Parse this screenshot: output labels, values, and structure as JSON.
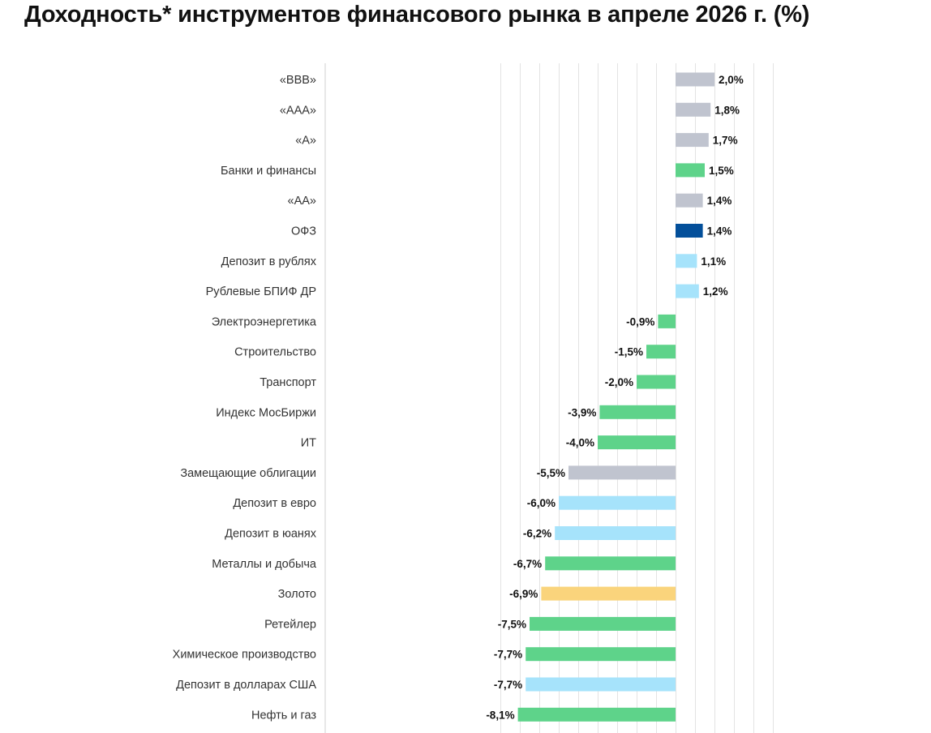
{
  "title": "Доходность* инструментов финансового рынка в апреле 2026 г. (%)",
  "colors": {
    "gray": "#c0c4cf",
    "green": "#5ed38a",
    "navy": "#034f9a",
    "light_blue": "#a6e3fb",
    "gold": "#fad47c"
  },
  "chart_data": {
    "type": "bar",
    "orientation": "horizontal",
    "title": "Доходность* инструментов финансового рынка в апреле 2026 г. (%)",
    "xlim": [
      -9,
      5
    ],
    "grid": true,
    "bars": [
      {
        "category": "«BBB»",
        "value": 2.0,
        "label": "2,0%",
        "color": "gray"
      },
      {
        "category": "«AAA»",
        "value": 1.8,
        "label": "1,8%",
        "color": "gray"
      },
      {
        "category": "«A»",
        "value": 1.7,
        "label": "1,7%",
        "color": "gray"
      },
      {
        "category": "Банки и финансы",
        "value": 1.5,
        "label": "1,5%",
        "color": "green"
      },
      {
        "category": "«AA»",
        "value": 1.4,
        "label": "1,4%",
        "color": "gray"
      },
      {
        "category": "ОФЗ",
        "value": 1.4,
        "label": "1,4%",
        "color": "navy"
      },
      {
        "category": "Депозит в рублях",
        "value": 1.1,
        "label": "1,1%",
        "color": "light_blue"
      },
      {
        "category": "Рублевые БПИФ ДР",
        "value": 1.2,
        "label": "1,2%",
        "color": "light_blue"
      },
      {
        "category": "Электроэнергетика",
        "value": -0.9,
        "label": "-0,9%",
        "color": "green"
      },
      {
        "category": "Строительство",
        "value": -1.5,
        "label": "-1,5%",
        "color": "green"
      },
      {
        "category": "Транспорт",
        "value": -2.0,
        "label": "-2,0%",
        "color": "green"
      },
      {
        "category": "Индекс МосБиржи",
        "value": -3.9,
        "label": "-3,9%",
        "color": "green"
      },
      {
        "category": "ИТ",
        "value": -4.0,
        "label": "-4,0%",
        "color": "green"
      },
      {
        "category": "Замещающие облигации",
        "value": -5.5,
        "label": "-5,5%",
        "color": "gray"
      },
      {
        "category": "Депозит в евро",
        "value": -6.0,
        "label": "-6,0%",
        "color": "light_blue"
      },
      {
        "category": "Депозит в юанях",
        "value": -6.2,
        "label": "-6,2%",
        "color": "light_blue"
      },
      {
        "category": "Металлы и добыча",
        "value": -6.7,
        "label": "-6,7%",
        "color": "green"
      },
      {
        "category": "Золото",
        "value": -6.9,
        "label": "-6,9%",
        "color": "gold"
      },
      {
        "category": "Ретейлер",
        "value": -7.5,
        "label": "-7,5%",
        "color": "green"
      },
      {
        "category": "Химическое производство",
        "value": -7.7,
        "label": "-7,7%",
        "color": "green"
      },
      {
        "category": "Депозит в долларах США",
        "value": -7.7,
        "label": "-7,7%",
        "color": "light_blue"
      },
      {
        "category": "Нефть и газ",
        "value": -8.1,
        "label": "-8,1%",
        "color": "green"
      }
    ]
  }
}
